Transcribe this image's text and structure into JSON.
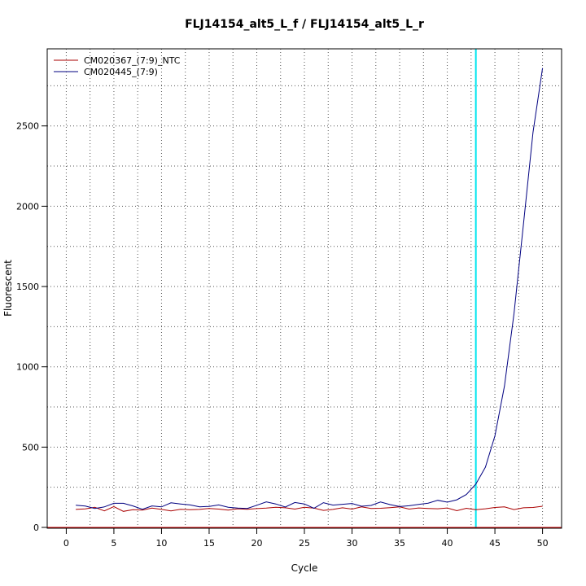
{
  "chart_data": {
    "type": "line",
    "title": "FLJ14154_alt5_L_f / FLJ14154_alt5_L_r",
    "xlabel": "Cycle",
    "ylabel": "Fluorescent",
    "xlim": [
      -2,
      52
    ],
    "ylim": [
      -5,
      2980
    ],
    "xticks": [
      0,
      5,
      10,
      15,
      20,
      25,
      30,
      35,
      40,
      45,
      50
    ],
    "yticks": [
      0,
      500,
      1000,
      1500,
      2000,
      2500
    ],
    "xtick_labels": [
      "0",
      "5",
      "10",
      "15",
      "20",
      "25",
      "30",
      "35",
      "40",
      "45",
      "50"
    ],
    "ytick_labels": [
      "0",
      "500",
      "1000",
      "1500",
      "2000",
      "2500"
    ],
    "grid": true,
    "legend_position": "top-left",
    "threshold_cycle": 43,
    "threshold_color": "#00e5ee",
    "baseline_y": 0,
    "baseline_color": "#cc0000",
    "series": [
      {
        "name": "CM020367_(7:9)_NTC",
        "color": "#aa0000",
        "x": [
          1,
          2,
          3,
          4,
          5,
          6,
          7,
          8,
          9,
          10,
          11,
          12,
          13,
          14,
          15,
          16,
          17,
          18,
          19,
          20,
          21,
          22,
          23,
          24,
          25,
          26,
          27,
          28,
          29,
          30,
          31,
          32,
          33,
          34,
          35,
          36,
          37,
          38,
          39,
          40,
          41,
          42,
          43,
          44,
          45,
          46,
          47,
          48,
          49,
          50
        ],
        "values": [
          112,
          115,
          125,
          103,
          130,
          100,
          110,
          108,
          120,
          112,
          103,
          113,
          110,
          112,
          118,
          114,
          108,
          116,
          113,
          117,
          120,
          126,
          122,
          114,
          126,
          120,
          106,
          112,
          122,
          114,
          128,
          118,
          119,
          123,
          128,
          114,
          121,
          118,
          116,
          121,
          104,
          119,
          110,
          116,
          124,
          128,
          111,
          122,
          124,
          132
        ]
      },
      {
        "name": "CM020445_(7:9)",
        "color": "#000080",
        "x": [
          1,
          2,
          3,
          4,
          5,
          6,
          7,
          8,
          9,
          10,
          11,
          12,
          13,
          14,
          15,
          16,
          17,
          18,
          19,
          20,
          21,
          22,
          23,
          24,
          25,
          26,
          27,
          28,
          29,
          30,
          31,
          32,
          33,
          34,
          35,
          36,
          37,
          38,
          39,
          40,
          41,
          42,
          43,
          44,
          45,
          46,
          47,
          48,
          49,
          50
        ],
        "values": [
          138,
          133,
          118,
          128,
          150,
          150,
          134,
          113,
          134,
          128,
          153,
          146,
          140,
          128,
          131,
          140,
          126,
          120,
          118,
          138,
          159,
          146,
          127,
          155,
          146,
          119,
          154,
          139,
          144,
          149,
          132,
          137,
          158,
          142,
          130,
          135,
          143,
          151,
          169,
          157,
          172,
          205,
          270,
          375,
          570,
          880,
          1330,
          1890,
          2460,
          2860
        ]
      }
    ]
  }
}
